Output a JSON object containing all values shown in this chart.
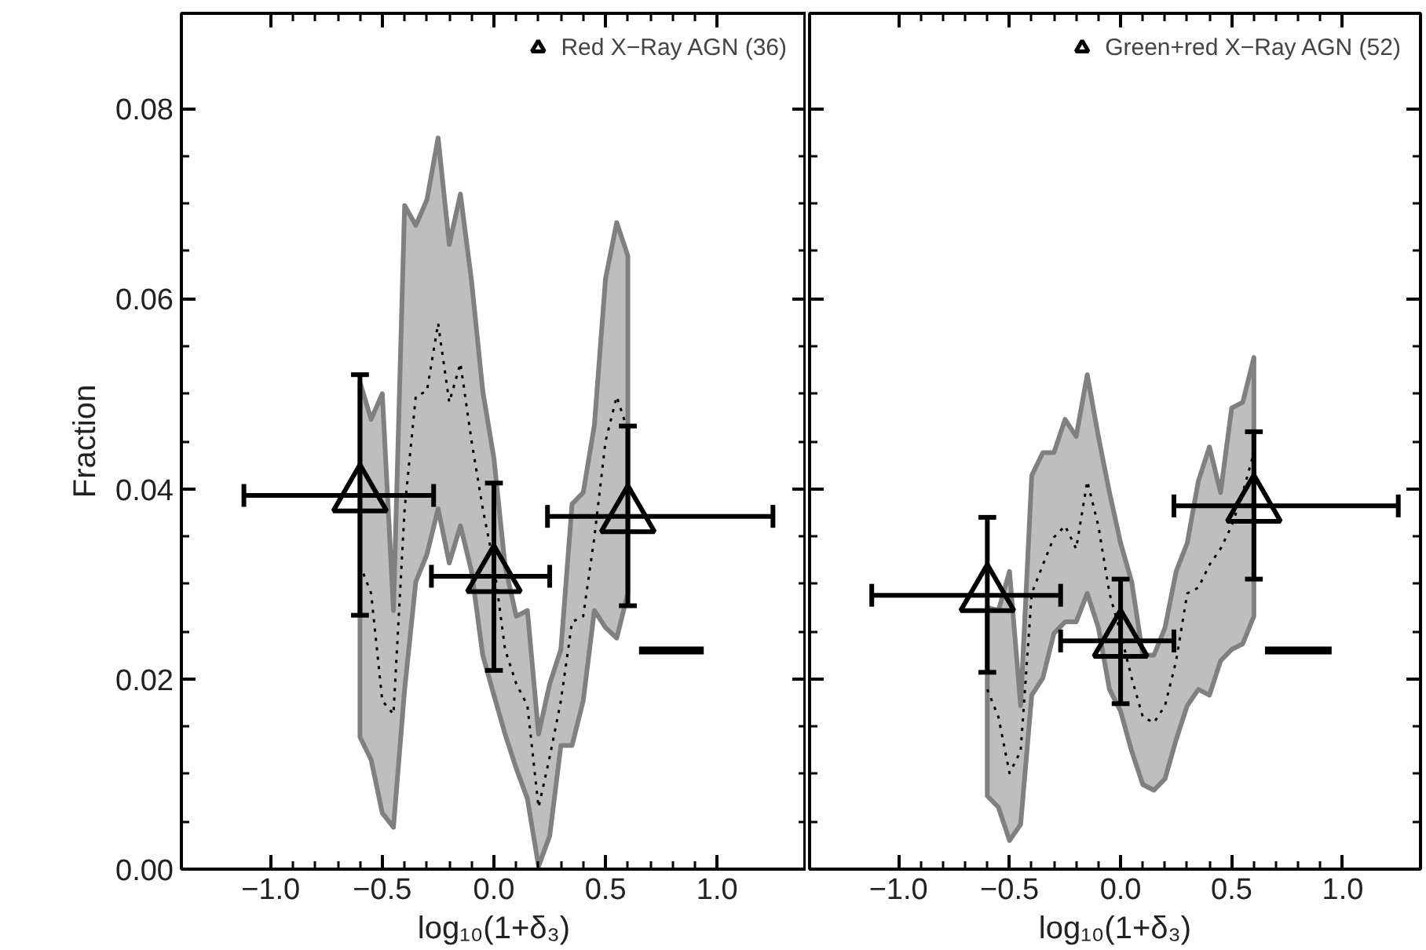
{
  "chart_data": [
    {
      "type": "scatter",
      "xlabel": "log₁₀(1+δ₃)",
      "ylabel": "Fraction",
      "xlim": [
        -1.4,
        1.4
      ],
      "ylim": [
        0,
        0.09
      ],
      "xticks": [
        {
          "value": -1.0,
          "label": "−1.0"
        },
        {
          "value": -0.5,
          "label": "−0.5"
        },
        {
          "value": 0.0,
          "label": "0.0"
        },
        {
          "value": 0.5,
          "label": "0.5"
        },
        {
          "value": 1.0,
          "label": "1.0"
        }
      ],
      "yticks": [
        {
          "value": 0,
          "label": "0.00"
        },
        {
          "value": 0.02,
          "label": "0.02"
        },
        {
          "value": 0.04,
          "label": "0.04"
        },
        {
          "value": 0.06,
          "label": "0.06"
        },
        {
          "value": 0.08,
          "label": "0.08"
        }
      ],
      "legend": "top right",
      "series": [
        {
          "type": "line",
          "color": "#000000",
          "line_style": "dotted",
          "x": [
            -0.6,
            -0.55,
            -0.5,
            -0.45,
            -0.4,
            -0.35,
            -0.3,
            -0.25,
            -0.2,
            -0.15,
            -0.1,
            -0.05,
            0.0,
            0.05,
            0.1,
            0.15,
            0.2,
            0.25,
            0.3,
            0.35,
            0.4,
            0.45,
            0.5,
            0.55,
            0.6
          ],
          "values": [
            0.032,
            0.029,
            0.0177,
            0.0163,
            0.0379,
            0.0497,
            0.0503,
            0.0574,
            0.0491,
            0.0532,
            0.045,
            0.0379,
            0.032,
            0.0231,
            0.0195,
            0.0172,
            0.0065,
            0.0118,
            0.0177,
            0.026,
            0.0266,
            0.0349,
            0.045,
            0.0497,
            0.0461
          ],
          "upper": [
            0.0512,
            0.0473,
            0.05,
            0.0272,
            0.0698,
            0.0677,
            0.0704,
            0.0769,
            0.0657,
            0.071,
            0.0618,
            0.0503,
            0.0432,
            0.0319,
            0.0266,
            0.0272,
            0.0142,
            0.0195,
            0.0231,
            0.0384,
            0.0396,
            0.0467,
            0.0621,
            0.068,
            0.0645
          ],
          "lower": [
            0.0139,
            0.0115,
            0.0059,
            0.0044,
            0.0189,
            0.0302,
            0.0331,
            0.0379,
            0.0322,
            0.0361,
            0.0313,
            0.0225,
            0.0183,
            0.0142,
            0.0106,
            0.0074,
            0.0003,
            0.0035,
            0.013,
            0.013,
            0.0177,
            0.0272,
            0.0254,
            0.0243,
            0.029
          ]
        },
        {
          "type": "scatter",
          "name": "Red X−Ray AGN (36)",
          "color": "#000000",
          "marker": "triangle",
          "x": [
            -0.6,
            0.0,
            0.6
          ],
          "values": [
            0.0393,
            0.0308,
            0.0371
          ],
          "errors": [
            [
              0.0267,
              0.052
            ],
            [
              0.0209,
              0.0406
            ],
            [
              0.0277,
              0.0466
            ]
          ],
          "xerrors": [
            [
              -1.12,
              -0.27
            ],
            [
              -0.28,
              0.25
            ],
            [
              0.24,
              1.25
            ]
          ]
        },
        {
          "type": "line",
          "color": "#000000",
          "line_style": "solid",
          "x": [
            0.65,
            0.94
          ],
          "values": [
            0.023,
            0.023
          ]
        }
      ]
    },
    {
      "type": "scatter",
      "xlabel": "log₁₀(1+δ₃)",
      "xlim": [
        -1.4,
        1.35
      ],
      "ylim": [
        0,
        0.09
      ],
      "xticks": [
        {
          "value": -1.0,
          "label": "−1.0"
        },
        {
          "value": -0.5,
          "label": "−0.5"
        },
        {
          "value": 0.0,
          "label": "0.0"
        },
        {
          "value": 0.5,
          "label": "0.5"
        },
        {
          "value": 1.0,
          "label": "1.0"
        }
      ],
      "yticks": [
        0,
        0.02,
        0.04,
        0.06,
        0.08
      ],
      "tick_labels": "x",
      "legend": "top right",
      "series": [
        {
          "type": "line",
          "color": "#000000",
          "line_style": "dotted",
          "x": [
            -0.6,
            -0.55,
            -0.5,
            -0.45,
            -0.4,
            -0.35,
            -0.3,
            -0.25,
            -0.2,
            -0.15,
            -0.1,
            -0.05,
            0.0,
            0.05,
            0.1,
            0.15,
            0.2,
            0.25,
            0.3,
            0.35,
            0.4,
            0.45,
            0.5,
            0.55,
            0.6
          ],
          "values": [
            0.0189,
            0.016,
            0.0101,
            0.0124,
            0.029,
            0.032,
            0.0349,
            0.0361,
            0.0337,
            0.0408,
            0.0361,
            0.029,
            0.0248,
            0.0201,
            0.016,
            0.0154,
            0.0172,
            0.0219,
            0.029,
            0.0296,
            0.032,
            0.0337,
            0.0361,
            0.0396,
            0.0438
          ],
          "upper": [
            0.0275,
            0.0272,
            0.0313,
            0.0172,
            0.0414,
            0.0438,
            0.0438,
            0.0473,
            0.0455,
            0.052,
            0.0455,
            0.0396,
            0.0343,
            0.0302,
            0.0225,
            0.0225,
            0.0254,
            0.0313,
            0.0343,
            0.0408,
            0.0444,
            0.0396,
            0.0485,
            0.0491,
            0.0538
          ],
          "lower": [
            0.0077,
            0.0065,
            0.003,
            0.0047,
            0.0183,
            0.0201,
            0.0248,
            0.026,
            0.026,
            0.029,
            0.0254,
            0.0189,
            0.0166,
            0.0124,
            0.0089,
            0.0083,
            0.0095,
            0.0136,
            0.0172,
            0.0189,
            0.0183,
            0.0219,
            0.0231,
            0.0237,
            0.0266
          ]
        },
        {
          "type": "scatter",
          "name": "Green+red X−Ray AGN (52)",
          "color": "#000000",
          "marker": "triangle",
          "x": [
            -0.6,
            0.0,
            0.6
          ],
          "values": [
            0.0288,
            0.024,
            0.0382
          ],
          "errors": [
            [
              0.0207,
              0.037
            ],
            [
              0.0174,
              0.0305
            ],
            [
              0.0305,
              0.046
            ]
          ],
          "xerrors": [
            [
              -1.12,
              -0.27
            ],
            [
              -0.27,
              0.24
            ],
            [
              0.24,
              1.25
            ]
          ]
        },
        {
          "type": "line",
          "color": "#000000",
          "line_style": "solid",
          "x": [
            0.65,
            0.95
          ],
          "values": [
            0.023,
            0.023
          ]
        }
      ]
    }
  ]
}
